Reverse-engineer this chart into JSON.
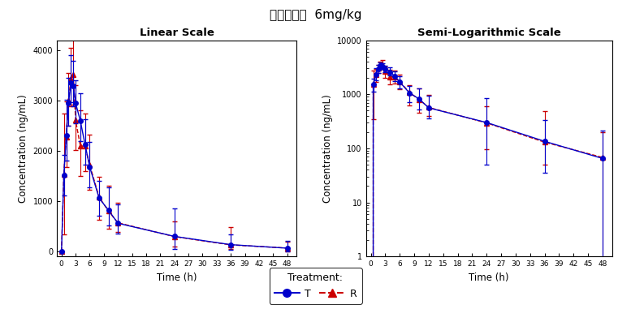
{
  "title": "给药剂量：  6mg/kg",
  "left_title": "Linear Scale",
  "right_title": "Semi-Logarithmic Scale",
  "xlabel": "Time (h)",
  "ylabel": "Concentration (ng/mL)",
  "time_points": [
    0,
    0.5,
    1,
    1.5,
    2,
    2.5,
    3,
    4,
    5,
    6,
    8,
    10,
    12,
    24,
    36,
    48
  ],
  "T_mean": [
    0,
    1520,
    2310,
    2950,
    3360,
    3290,
    2950,
    2600,
    2130,
    1680,
    1060,
    820,
    560,
    300,
    135,
    65
  ],
  "T_upper": [
    0,
    400,
    700,
    500,
    550,
    500,
    450,
    550,
    500,
    500,
    350,
    450,
    380,
    550,
    200,
    150
  ],
  "T_lower": [
    0,
    400,
    500,
    450,
    400,
    400,
    400,
    400,
    400,
    400,
    350,
    300,
    200,
    250,
    100,
    65
  ],
  "R_mean": [
    0,
    1540,
    2280,
    3000,
    3440,
    3520,
    2610,
    2100,
    2090,
    1720,
    1080,
    800,
    570,
    295,
    130,
    68
  ],
  "R_upper": [
    0,
    1200,
    700,
    550,
    600,
    750,
    700,
    700,
    650,
    600,
    400,
    500,
    400,
    300,
    350,
    130
  ],
  "R_lower": [
    0,
    1200,
    600,
    500,
    550,
    600,
    600,
    600,
    500,
    500,
    450,
    350,
    180,
    200,
    80,
    68
  ],
  "T_color": "#0000cc",
  "R_color": "#cc0000",
  "xticks": [
    0,
    3,
    6,
    9,
    12,
    15,
    18,
    21,
    24,
    27,
    30,
    33,
    36,
    39,
    42,
    45,
    48
  ],
  "linear_ylim": [
    -100,
    4200
  ],
  "linear_yticks": [
    0,
    1000,
    2000,
    3000,
    4000
  ],
  "log_ylim_min": 1,
  "log_ylim_max": 10000,
  "legend_title": "Treatment:",
  "legend_T": "T",
  "legend_R": "R"
}
